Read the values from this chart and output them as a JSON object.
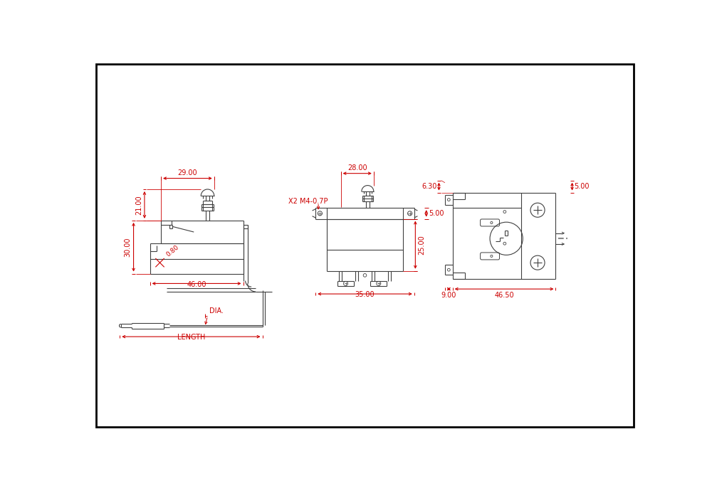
{
  "background_color": "#ffffff",
  "border_color": "#000000",
  "line_color": "#404040",
  "dim_color": "#cc0000",
  "text_color": "#cc0000",
  "dims": {
    "v1_width": "29.00",
    "v1_h_top": "21.00",
    "v1_h_bot": "30.00",
    "v1_base": "46.00",
    "v1_angle": "0.80",
    "v2_width": "28.00",
    "v2_height": "25.00",
    "v2_label": "X2 M4-0.7P",
    "v2_side": "5.00",
    "v3_top": "6.30",
    "v3_side_w": "9.00",
    "v3_width": "46.50",
    "cap_dia": "DIA.",
    "cap_len": "LENGTH"
  }
}
